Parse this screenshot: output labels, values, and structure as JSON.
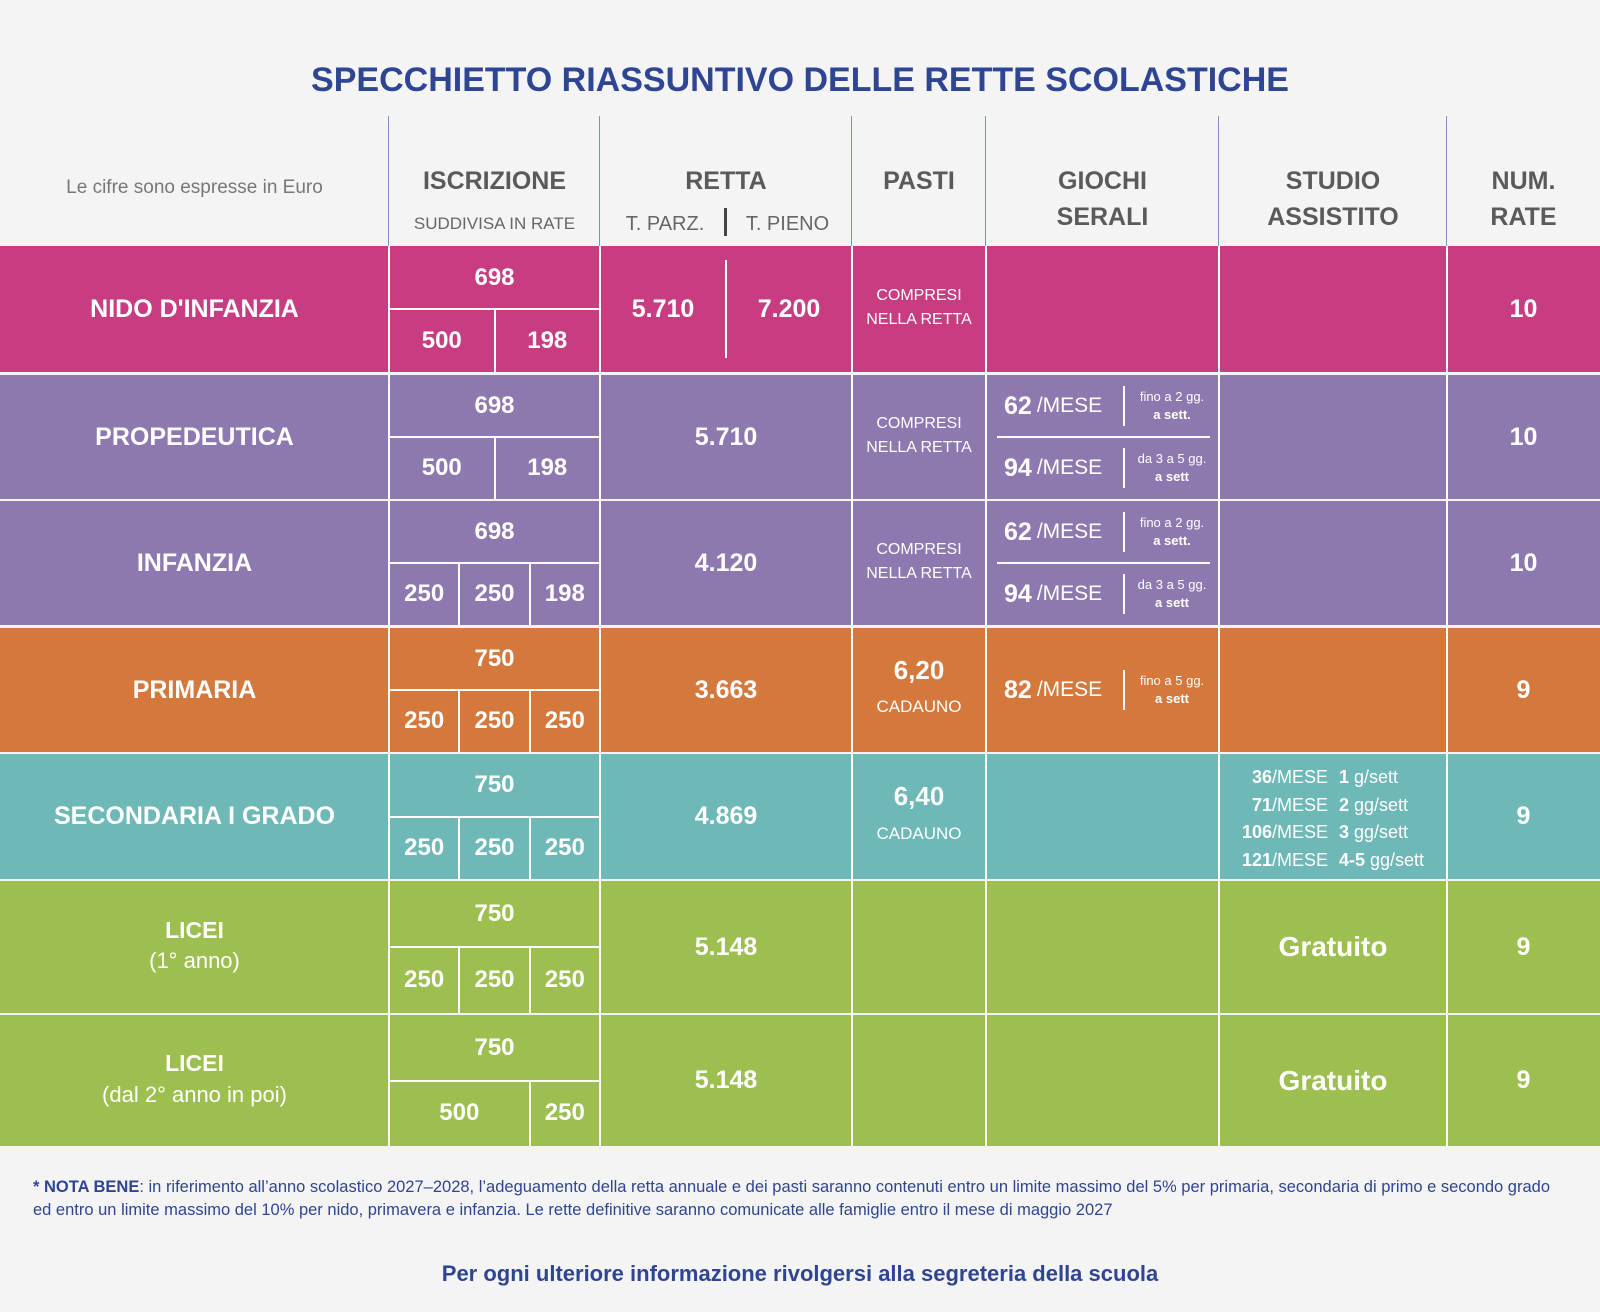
{
  "title": "SPECCHIETTO RIASSUNTIVO DELLE RETTE SCOLASTICHE",
  "header": {
    "note": "Le cifre sono espresse in Euro",
    "iscrizione": "ISCRIZIONE",
    "iscrizione_sub": "SUDDIVISA IN RATE",
    "retta": "RETTA",
    "retta_parz": "T. PARZ.",
    "retta_pieno": "T. PIENO",
    "pasti": "PASTI",
    "giochi": [
      "GIOCHI",
      "SERALI"
    ],
    "studio": [
      "STUDIO",
      "ASSISTITO"
    ],
    "rate": [
      "NUM.",
      "RATE"
    ]
  },
  "rows": [
    {
      "name": "NIDO D'INFANZIA",
      "color": "#c83d82",
      "iscrizione": {
        "total": 698,
        "parts": [
          500,
          198
        ]
      },
      "retta": [
        "5.710",
        "7.200"
      ],
      "pasti": {
        "lines": [
          "COMPRESI",
          "NELLA RETTA"
        ]
      },
      "rate": 10
    },
    {
      "name": "PROPEDEUTICA",
      "color": "#8d78b0",
      "iscrizione": {
        "total": 698,
        "parts": [
          500,
          198
        ]
      },
      "retta": [
        "5.710"
      ],
      "pasti": {
        "lines": [
          "COMPRESI",
          "NELLA RETTA"
        ]
      },
      "giochi": [
        {
          "amount": 62,
          "unit": "/MESE",
          "note": [
            "fino a 2 gg.",
            "a sett."
          ]
        },
        {
          "amount": 94,
          "unit": "/MESE",
          "note": [
            "da 3 a 5 gg.",
            "a sett"
          ]
        }
      ],
      "rate": 10
    },
    {
      "name": "INFANZIA",
      "color": "#8d78b0",
      "iscrizione": {
        "total": 698,
        "parts": [
          250,
          250,
          198
        ]
      },
      "retta": [
        "4.120"
      ],
      "pasti": {
        "lines": [
          "COMPRESI",
          "NELLA RETTA"
        ]
      },
      "giochi": [
        {
          "amount": 62,
          "unit": "/MESE",
          "note": [
            "fino a 2 gg.",
            "a sett."
          ]
        },
        {
          "amount": 94,
          "unit": "/MESE",
          "note": [
            "da 3 a 5 gg.",
            "a sett"
          ]
        }
      ],
      "rate": 10
    },
    {
      "name": "PRIMARIA",
      "color": "#d4783c",
      "iscrizione": {
        "total": 750,
        "parts": [
          250,
          250,
          250
        ]
      },
      "retta": [
        "3.663"
      ],
      "pasti": {
        "value": "6,20",
        "unit": "CADAUNO"
      },
      "giochi": [
        {
          "amount": 82,
          "unit": "/MESE",
          "note": [
            "fino a 5 gg.",
            "a sett"
          ]
        }
      ],
      "rate": 9
    },
    {
      "name": "SECONDARIA I GRADO",
      "color": "#6fb8b8",
      "iscrizione": {
        "total": 750,
        "parts": [
          250,
          250,
          250
        ]
      },
      "retta": [
        "4.869"
      ],
      "pasti": {
        "value": "6,40",
        "unit": "CADAUNO"
      },
      "studio": [
        {
          "amount": 36,
          "unit": "/MESE",
          "days": "1",
          "days_unit": "g/sett"
        },
        {
          "amount": 71,
          "unit": "/MESE",
          "days": "2",
          "days_unit": "gg/sett"
        },
        {
          "amount": 106,
          "unit": "/MESE",
          "days": "3",
          "days_unit": "gg/sett"
        },
        {
          "amount": 121,
          "unit": "/MESE",
          "days": "4-5",
          "days_unit": "gg/sett"
        }
      ],
      "rate": 9
    },
    {
      "name": "LICEI",
      "sub": "(1° anno)",
      "color": "#9dbf50",
      "iscrizione": {
        "total": 750,
        "parts": [
          250,
          250,
          250
        ]
      },
      "retta": [
        "5.148"
      ],
      "studio": "Gratuito",
      "rate": 9
    },
    {
      "name": "LICEI",
      "sub": "(dal 2° anno in poi)",
      "color": "#9dbf50",
      "iscrizione": {
        "total": 750,
        "parts": [
          500,
          250
        ]
      },
      "retta": [
        "5.148"
      ],
      "studio": "Gratuito",
      "rate": 9
    }
  ],
  "footnote": {
    "label": "* NOTA BENE",
    "text": ": in riferimento all’anno scolastico 2027–2028, l’adeguamento della retta annuale e dei pasti saranno contenuti entro un limite massimo del 5% per primaria, secondaria di primo e secondo grado ed entro un limite massimo del 10% per nido, primavera e infanzia. Le rette definitive saranno comunicate alle famiglie entro il mese di maggio 2027"
  },
  "footer": "Per ogni ulteriore informazione rivolgersi alla segreteria della scuola"
}
